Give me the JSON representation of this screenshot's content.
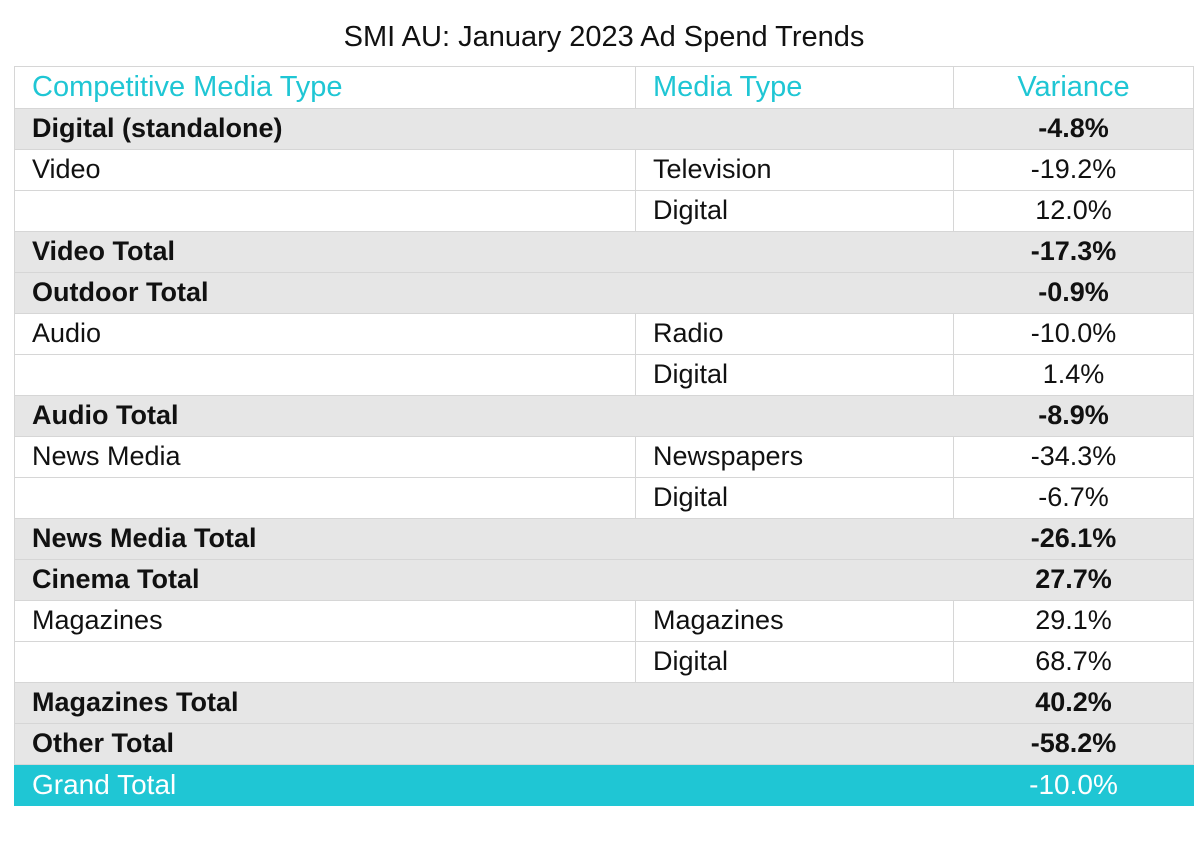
{
  "chart_data": {
    "type": "table",
    "title": "SMI AU: January 2023 Ad Spend Trends",
    "headers": [
      "Competitive Media Type",
      "Media Type",
      "Variance"
    ],
    "rows": [
      {
        "kind": "total",
        "category": "Digital (standalone)",
        "media": "",
        "variance": "-4.8%"
      },
      {
        "kind": "detail",
        "category": "Video",
        "media": "Television",
        "variance": "-19.2%"
      },
      {
        "kind": "detail",
        "category": "",
        "media": "Digital",
        "variance": "12.0%"
      },
      {
        "kind": "total",
        "category": "Video Total",
        "media": "",
        "variance": "-17.3%"
      },
      {
        "kind": "total",
        "category": "Outdoor Total",
        "media": "",
        "variance": "-0.9%"
      },
      {
        "kind": "detail",
        "category": "Audio",
        "media": "Radio",
        "variance": "-10.0%"
      },
      {
        "kind": "detail",
        "category": "",
        "media": "Digital",
        "variance": "1.4%"
      },
      {
        "kind": "total",
        "category": "Audio Total",
        "media": "",
        "variance": "-8.9%"
      },
      {
        "kind": "detail",
        "category": "News Media",
        "media": "Newspapers",
        "variance": "-34.3%"
      },
      {
        "kind": "detail",
        "category": "",
        "media": "Digital",
        "variance": "-6.7%"
      },
      {
        "kind": "total",
        "category": "News Media Total",
        "media": "",
        "variance": "-26.1%"
      },
      {
        "kind": "total",
        "category": "Cinema Total",
        "media": "",
        "variance": "27.7%"
      },
      {
        "kind": "detail",
        "category": "Magazines",
        "media": "Magazines",
        "variance": "29.1%"
      },
      {
        "kind": "detail",
        "category": "",
        "media": "Digital",
        "variance": "68.7%"
      },
      {
        "kind": "total",
        "category": "Magazines Total",
        "media": "",
        "variance": "40.2%"
      },
      {
        "kind": "total",
        "category": "Other Total",
        "media": "",
        "variance": "-58.2%"
      },
      {
        "kind": "grand",
        "category": "Grand Total",
        "media": "",
        "variance": "-10.0%"
      }
    ],
    "colors": {
      "accent": "#1fc6d4",
      "total_row_bg": "#e6e6e6",
      "grid": "#d6d6d6"
    }
  }
}
